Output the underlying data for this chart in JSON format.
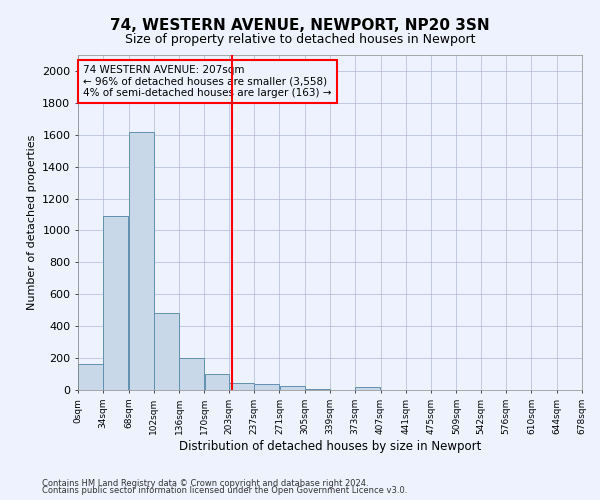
{
  "title1": "74, WESTERN AVENUE, NEWPORT, NP20 3SN",
  "title2": "Size of property relative to detached houses in Newport",
  "xlabel": "Distribution of detached houses by size in Newport",
  "ylabel": "Number of detached properties",
  "bar_color": "#c8d8e8",
  "bar_edge_color": "#6090b0",
  "grid_color": "#b0b8d8",
  "vline_color": "red",
  "annotation_text": "74 WESTERN AVENUE: 207sqm\n← 96% of detached houses are smaller (3,558)\n4% of semi-detached houses are larger (163) →",
  "annotation_box_color": "red",
  "bins": [
    0,
    34,
    68,
    102,
    136,
    170,
    203,
    237,
    271,
    305,
    339,
    373,
    407,
    441,
    475,
    509,
    542,
    576,
    610,
    644,
    678
  ],
  "tick_labels": [
    "0sqm",
    "34sqm",
    "68sqm",
    "102sqm",
    "136sqm",
    "170sqm",
    "203sqm",
    "237sqm",
    "271sqm",
    "305sqm",
    "339sqm",
    "373sqm",
    "407sqm",
    "441sqm",
    "475sqm",
    "509sqm",
    "542sqm",
    "576sqm",
    "610sqm",
    "644sqm",
    "678sqm"
  ],
  "bar_heights": [
    165,
    1090,
    1620,
    480,
    200,
    100,
    45,
    38,
    25,
    5,
    0,
    20,
    0,
    0,
    0,
    0,
    0,
    0,
    0,
    0
  ],
  "ylim": [
    0,
    2100
  ],
  "yticks": [
    0,
    200,
    400,
    600,
    800,
    1000,
    1200,
    1400,
    1600,
    1800,
    2000
  ],
  "footer1": "Contains HM Land Registry data © Crown copyright and database right 2024.",
  "footer2": "Contains public sector information licensed under the Open Government Licence v3.0.",
  "background_color": "#eef2ff",
  "title_fontsize": 11,
  "subtitle_fontsize": 9,
  "ylabel_fontsize": 8,
  "xlabel_fontsize": 8.5,
  "ytick_fontsize": 8,
  "xtick_fontsize": 6.5,
  "footer_fontsize": 6,
  "vline_x": 207
}
